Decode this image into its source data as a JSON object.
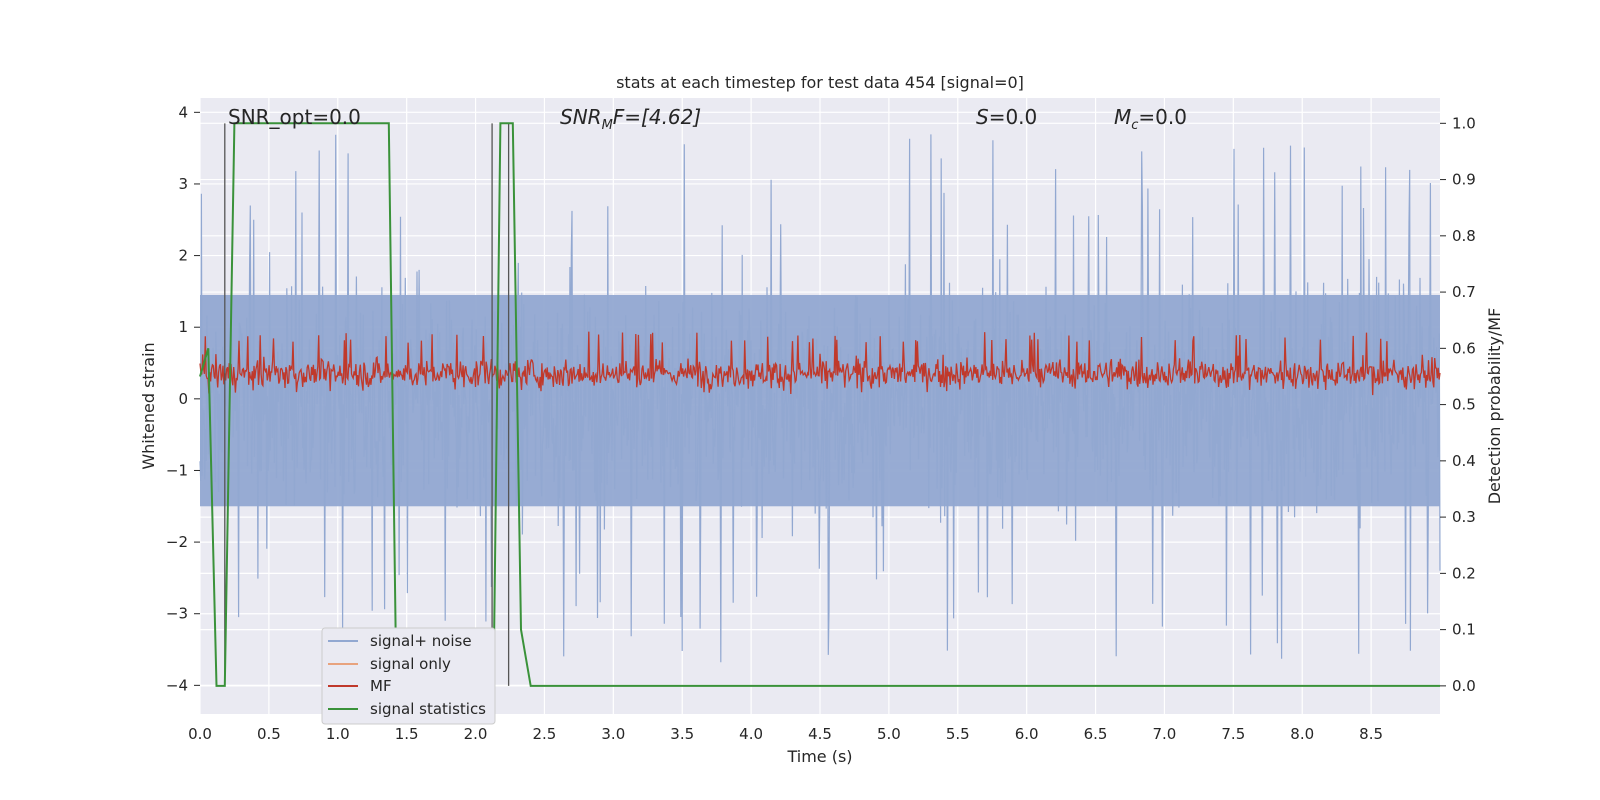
{
  "chart_data": {
    "type": "line",
    "title": "stats at each timestep for test data 454 [signal=0]",
    "xlabel": "Time (s)",
    "ylabel_left": "Whitened strain",
    "ylabel_right": "Detection probability/MF",
    "xlim": [
      0,
      9.0
    ],
    "ylim_left": [
      -4.4,
      4.2
    ],
    "ylim_right": [
      -0.05,
      1.045
    ],
    "x_ticks": [
      0.0,
      0.5,
      1.0,
      1.5,
      2.0,
      2.5,
      3.0,
      3.5,
      4.0,
      4.5,
      5.0,
      5.5,
      6.0,
      6.5,
      7.0,
      7.5,
      8.0,
      8.5
    ],
    "y_left_ticks": [
      4,
      3,
      2,
      1,
      0,
      -1,
      -2,
      -3,
      -4
    ],
    "y_right_ticks": [
      1.0,
      0.9,
      0.8,
      0.7,
      0.6,
      0.5,
      0.4,
      0.3,
      0.2,
      0.1,
      0.0
    ],
    "grid": true,
    "legend_position": "lower-left",
    "annotations": {
      "snr_opt": "SNR_opt=0.0",
      "snr_mf_main": "SNR",
      "snr_mf_sub": "M",
      "snr_mf_rest": "F=[4.62]",
      "s_var": "S",
      "s_rest": "=0.0",
      "mc_var": "M",
      "mc_sub": "c",
      "mc_rest": "=0.0"
    },
    "series": [
      {
        "name": "signal+ noise",
        "color": "#92a8d1",
        "description_values": "noise envelope approx ±1.5, spikes up to 3.6, down to -3.9"
      },
      {
        "name": "signal only",
        "color": "#e8a37e",
        "values": []
      },
      {
        "name": "MF",
        "color": "#c0392b",
        "axis": "right",
        "range": [
          0.51,
          0.63
        ]
      },
      {
        "name": "signal statistics",
        "color": "#3a923a",
        "axis": "right",
        "x": [
          0.0,
          0.06,
          0.12,
          0.18,
          0.25,
          1.37,
          1.42,
          1.48,
          2.13,
          2.18,
          2.23,
          2.27,
          2.33,
          2.4,
          9.0
        ],
        "values": [
          0.55,
          0.6,
          0.0,
          0.0,
          1.0,
          1.0,
          0.1,
          0.0,
          0.0,
          1.0,
          1.0,
          1.0,
          0.1,
          0.0,
          0.0
        ]
      }
    ],
    "vlines": [
      0.18,
      2.12,
      2.24
    ]
  }
}
